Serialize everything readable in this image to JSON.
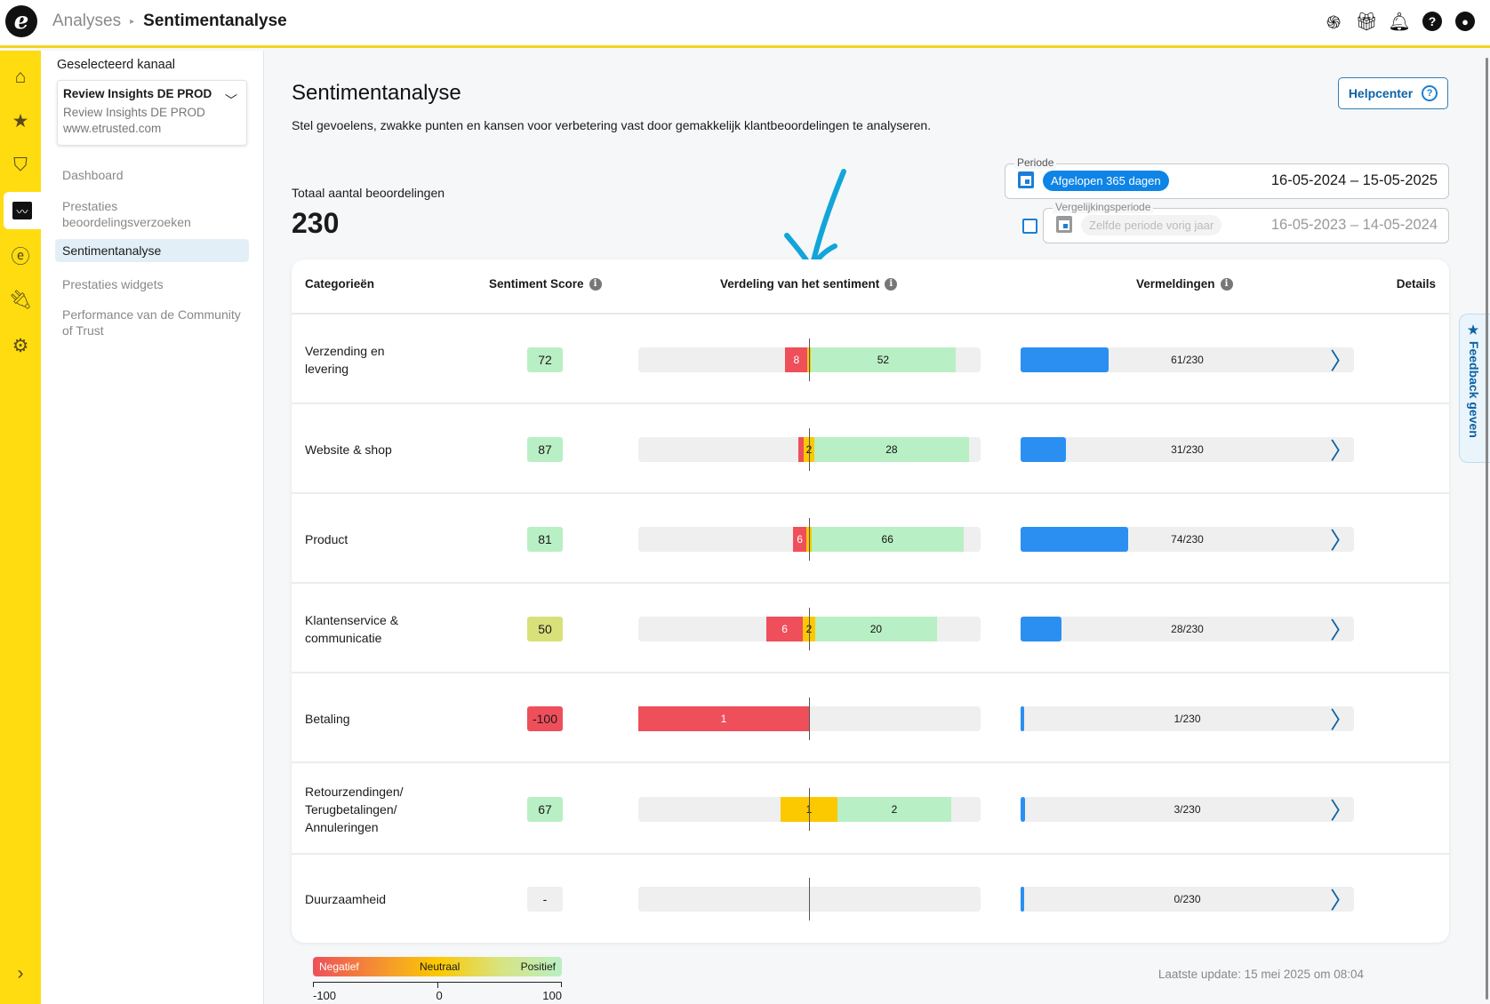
{
  "header": {
    "logo": "e",
    "breadcrumb": [
      "Analyses",
      "Sentimentanalyse"
    ],
    "icons": [
      "fingerprint-icon",
      "gift-icon",
      "bell-icon",
      "help-icon",
      "account-icon"
    ]
  },
  "rail": {
    "icons": [
      "home-icon",
      "star-icon",
      "shield-check-icon",
      "analytics-icon",
      "etrusted-icon",
      "plug-icon",
      "gear-icon",
      "expand-icon"
    ],
    "active": "analytics-icon",
    "color": "#ffdc0f"
  },
  "sidebar": {
    "label": "Geselecteerd kanaal",
    "channel": {
      "name": "Review Insights DE PROD",
      "sub": "Review Insights DE PROD",
      "url": "www.etrusted.com"
    },
    "items": [
      {
        "label": "Dashboard"
      },
      {
        "label": "Prestaties beoordelingsverzoeken"
      },
      {
        "label": "Sentimentanalyse",
        "active": true
      },
      {
        "label": "Prestaties widgets"
      },
      {
        "label": "Performance van de Community of Trust"
      }
    ]
  },
  "main": {
    "title": "Sentimentanalyse",
    "description": "Stel gevoelens, zwakke punten en kansen voor verbetering vast door gemakkelijk klantbeoordelingen te analyseren.",
    "help": "Helpcenter",
    "total_label": "Totaal aantal beoordelingen",
    "total": "230",
    "period": {
      "label": "Periode",
      "chip": "Afgelopen 365 dagen",
      "range": "16-05-2024 – 15-05-2025"
    },
    "compare": {
      "label": "Vergelijkingsperiode",
      "chip": "Zelfde periode vorig jaar",
      "range": "16-05-2023 – 14-05-2024",
      "checked": false
    },
    "columns": {
      "category": "Categorieën",
      "score": "Sentiment Score",
      "dist": "Verdeling van het sentiment",
      "mentions": "Vermeldingen",
      "details": "Details"
    },
    "total_reviews": 230,
    "rows": [
      {
        "category": "Verzending en levering",
        "score": "72",
        "neg": 8,
        "neu": 1,
        "pos": 52,
        "mentions": 61,
        "mentions_label": "61/230"
      },
      {
        "category": "Website & shop",
        "score": "87",
        "neg": 1,
        "neu": 2,
        "pos": 28,
        "mentions": 31,
        "mentions_label": "31/230"
      },
      {
        "category": "Product",
        "score": "81",
        "neg": 6,
        "neu": 2,
        "pos": 66,
        "mentions": 74,
        "mentions_label": "74/230"
      },
      {
        "category": "Klantenservice & communicatie",
        "score": "50",
        "neg": 6,
        "neu": 2,
        "pos": 20,
        "mentions": 28,
        "mentions_label": "28/230"
      },
      {
        "category": "Betaling",
        "score": "-100",
        "neg": 1,
        "neu": 0,
        "pos": 0,
        "mentions": 1,
        "mentions_label": "1/230"
      },
      {
        "category": "Retourzendingen/ Terugbetalingen/ Annuleringen",
        "score": "67",
        "neg": 0,
        "neu": 1,
        "pos": 2,
        "mentions": 3,
        "mentions_label": "3/230"
      },
      {
        "category": "Duurzaamheid",
        "score": "-",
        "neg": 0,
        "neu": 0,
        "pos": 0,
        "mentions": 0,
        "mentions_label": "0/230"
      }
    ],
    "legend": {
      "neg": "Negatief",
      "neu": "Neutraal",
      "pos": "Positief",
      "ticks": [
        "-100",
        "0",
        "100"
      ]
    },
    "updated": "Laatste update: 15 mei 2025 om 08:04",
    "feedback": "★ Feedback geven",
    "colors": {
      "negative": "#ee4f5b",
      "neutral": "#fcc800",
      "positive": "#b9efc4",
      "mentions": "#2b8ff2",
      "score_mid": "#d8e07a",
      "accent": "#0d84e6"
    }
  }
}
